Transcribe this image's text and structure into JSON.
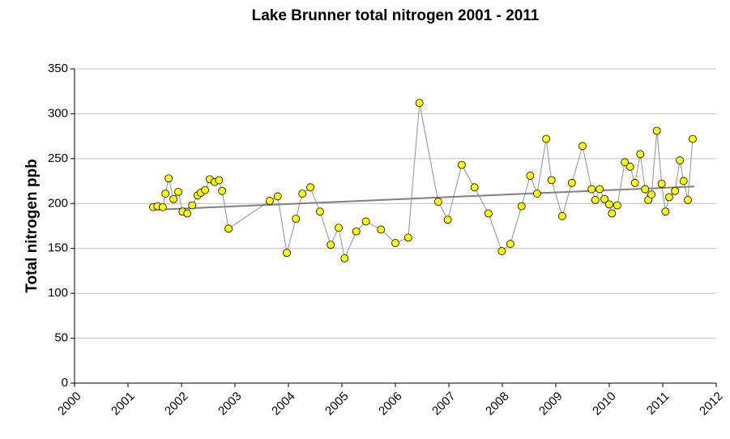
{
  "chart_data": {
    "type": "line",
    "title": "Lake Brunner total nitrogen 2001 - 2011",
    "y_label": "Total nitrogen ppb",
    "xlim": [
      2000,
      2012
    ],
    "xticks": [
      2000,
      2001,
      2002,
      2003,
      2004,
      2005,
      2006,
      2007,
      2008,
      2009,
      2010,
      2011,
      2012
    ],
    "ylim": [
      0,
      350
    ],
    "yticks": [
      0,
      50,
      100,
      150,
      200,
      250,
      300,
      350
    ],
    "grid": true,
    "series": [
      {
        "color": "#ffff00",
        "line_color": "#909090",
        "x": [
          2001.47,
          2001.55,
          2001.65,
          2001.7,
          2001.76,
          2001.85,
          2001.94,
          2002.02,
          2002.11,
          2002.2,
          2002.3,
          2002.36,
          2002.44,
          2002.53,
          2002.62,
          2002.7,
          2002.76,
          2002.88,
          2003.65,
          2003.8,
          2003.97,
          2004.14,
          2004.26,
          2004.41,
          2004.59,
          2004.79,
          2004.94,
          2005.05,
          2005.27,
          2005.45,
          2005.73,
          2006.0,
          2006.24,
          2006.45,
          2006.8,
          2006.98,
          2007.24,
          2007.48,
          2007.74,
          2007.99,
          2008.15,
          2008.36,
          2008.52,
          2008.65,
          2008.82,
          2008.92,
          2009.12,
          2009.3,
          2009.5,
          2009.67,
          2009.74,
          2009.82,
          2009.91,
          2010.0,
          2010.05,
          2010.15,
          2010.29,
          2010.39,
          2010.48,
          2010.58,
          2010.67,
          2010.73,
          2010.79,
          2010.89,
          2010.98,
          2011.05,
          2011.12,
          2011.23,
          2011.32,
          2011.39,
          2011.47,
          2011.56
        ],
        "values": [
          196,
          197,
          196,
          211,
          228,
          205,
          213,
          191,
          189,
          198,
          209,
          212,
          215,
          227,
          224,
          226,
          214,
          172,
          203,
          208,
          145,
          183,
          211,
          218,
          191,
          154,
          173,
          139,
          169,
          180,
          171,
          156,
          162,
          312,
          202,
          182,
          243,
          218,
          189,
          147,
          155,
          197,
          231,
          211,
          272,
          226,
          186,
          223,
          264,
          216,
          204,
          216,
          205,
          199,
          189,
          198,
          246,
          241,
          223,
          255,
          216,
          204,
          210,
          281,
          222,
          191,
          207,
          214,
          248,
          225,
          204,
          272
        ]
      }
    ],
    "trendline": {
      "color": "#808080",
      "x": [
        2001.47,
        2011.59
      ],
      "values": [
        193,
        219
      ]
    }
  }
}
